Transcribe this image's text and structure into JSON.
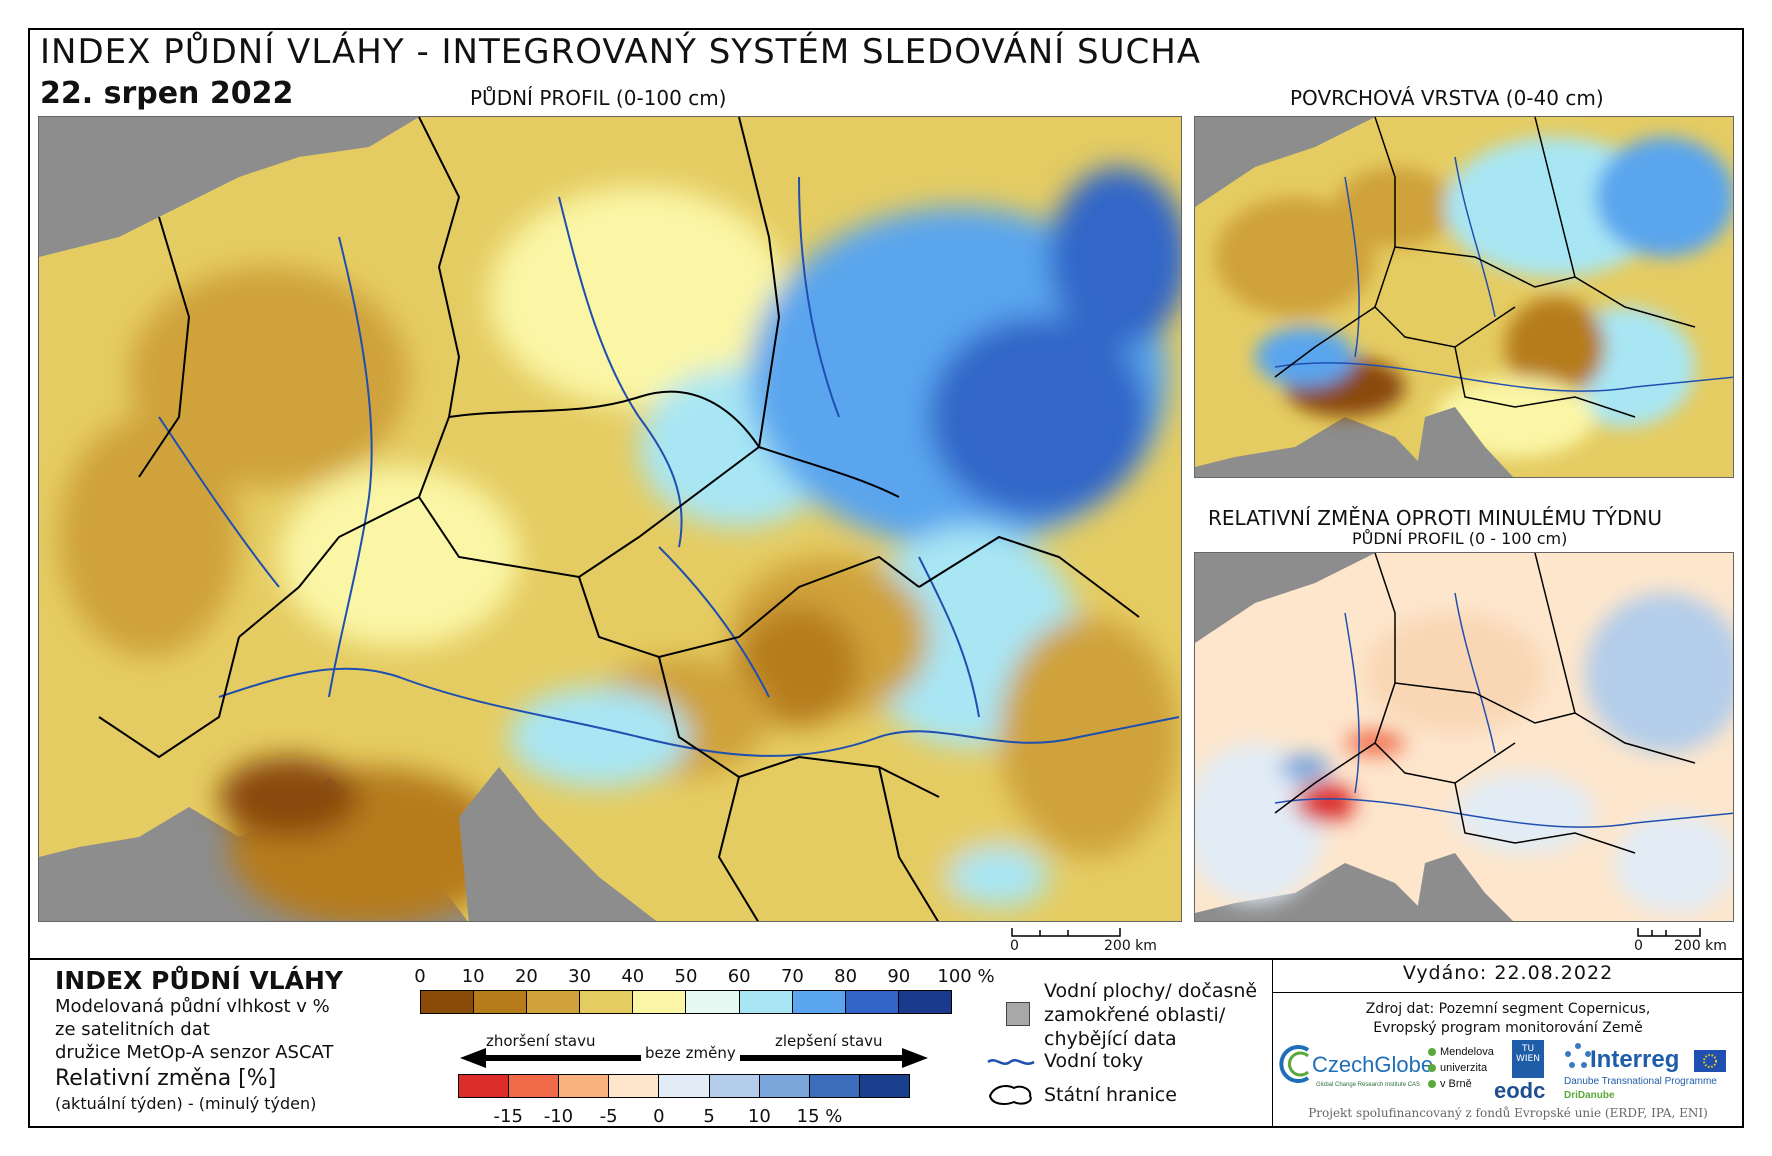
{
  "header": {
    "title": "INDEX PŮDNÍ VLÁHY - INTEGROVANÝ SYSTÉM SLEDOVÁNÍ SUCHA",
    "date": "22. srpen 2022"
  },
  "panels": {
    "main_label": "PŮDNÍ PROFIL (0-100 cm)",
    "surface_label": "POVRCHOVÁ VRSTVA (0-40 cm)",
    "change_label": "RELATIVNÍ ZMĚNA OPROTI MINULÉMU TÝDNU",
    "change_sublabel": "PŮDNÍ PROFIL (0 - 100 cm)"
  },
  "scalebars": {
    "main_zero": "0",
    "main_end": "200 km",
    "change_zero": "0",
    "change_end": "200 km"
  },
  "legend": {
    "title": "INDEX PŮDNÍ VLÁHY",
    "line1": "Modelovaná půdní vlhkost v %",
    "line2": "ze satelitních dat",
    "line3": "družice MetOp-A senzor ASCAT",
    "change_title": "Relativní změna [%]",
    "change_formula": "(aktuální týden) - (minulý týden)",
    "moisture_ticks": [
      "0",
      "10",
      "20",
      "30",
      "40",
      "50",
      "60",
      "70",
      "80",
      "90",
      "100 %"
    ],
    "moisture_colors": [
      "#8a4a08",
      "#b67c1c",
      "#cfa23a",
      "#e5cc62",
      "#faf6a6",
      "#e6f8f2",
      "#a8e6f4",
      "#5aa5ee",
      "#3166c8",
      "#1b3a8e"
    ],
    "change_ticks": [
      "-15",
      "-10",
      "-5",
      "0",
      "5",
      "10",
      "15 %"
    ],
    "change_colors": [
      "#dc2d2a",
      "#f06a48",
      "#f9b27e",
      "#fde6cc",
      "#e2ecf6",
      "#b4cdea",
      "#7aa6dc",
      "#3a6dbb",
      "#1a3f8f"
    ],
    "worsening": "zhoršení stavu",
    "no_change": "beze změny",
    "improving": "zlepšení stavu",
    "water_bodies": "Vodní plochy/ dočasně zamokřené oblasti/ chybějící data",
    "water_bodies_lines": [
      "Vodní plochy/ dočasně",
      "zamokřené oblasti/",
      "chybějící data"
    ],
    "rivers": "Vodní toky",
    "borders": "Státní hranice"
  },
  "footer": {
    "issued": "Vydáno: 22.08.2022",
    "source_line1": "Zdroj dat: Pozemní segment Copernicus,",
    "source_line2": "Evropský program monitorování Země",
    "funding": "Projekt spolufinancovaný z fondů Evropské unie (ERDF, IPA, ENI)"
  },
  "logos": {
    "czechglobe": "CzechGlobe",
    "czechglobe_sub": "Global Change Research Institute CAS",
    "mendel": [
      "Mendelova",
      "univerzita",
      "v Brně"
    ],
    "tuwien": "TU WIEN",
    "eodc": "eodc",
    "interreg": "Interreg",
    "interreg_sub1": "Danube Transnational Programme",
    "interreg_sub2": "DriDanube"
  },
  "colors": {
    "background_gray": "#8d8d8d",
    "river_blue": "#1f4fb0",
    "border_black": "#000000"
  }
}
